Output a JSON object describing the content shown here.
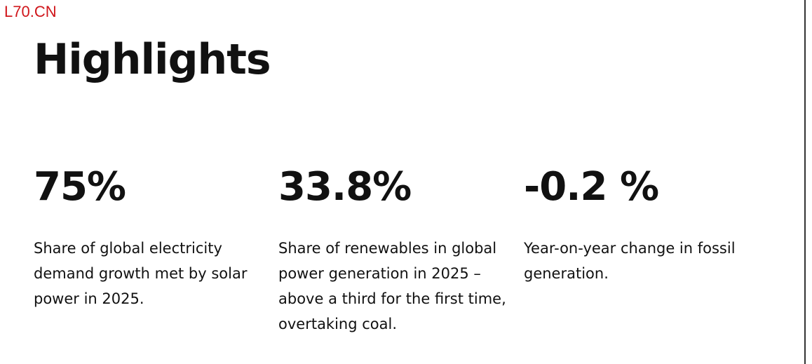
{
  "watermark": "L70.CN",
  "header": {
    "title": "Highlights"
  },
  "stats": [
    {
      "value": "75%",
      "description": "Share of global electricity demand growth met by solar power in 2025."
    },
    {
      "value": "33.8%",
      "description": "Share of renewables in global power generation in 2025 – above a third for the first time, overtaking coal."
    },
    {
      "value": "-0.2 %",
      "description": "Year-on-year change in fossil generation."
    }
  ]
}
